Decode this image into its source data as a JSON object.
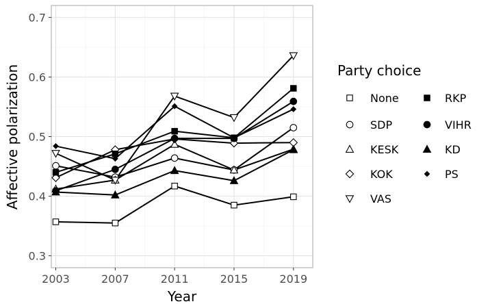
{
  "chart_data": {
    "type": "line",
    "xlabel": "Year",
    "ylabel": "Affective polarization",
    "x": [
      2003,
      2007,
      2011,
      2015,
      2019
    ],
    "xticks": [
      "2003",
      "2007",
      "2011",
      "2015",
      "2019"
    ],
    "yticks": [
      "0.3",
      "0.4",
      "0.5",
      "0.6",
      "0.7"
    ],
    "xlim": [
      2002.7,
      2020.3
    ],
    "ylim": [
      0.28,
      0.72
    ],
    "grid": true,
    "legend": {
      "title": "Party choice",
      "placement": "right",
      "columns": 2
    },
    "series": [
      {
        "name": "None",
        "marker": "square-open",
        "values": [
          0.357,
          0.355,
          0.417,
          0.385,
          0.399
        ]
      },
      {
        "name": "SDP",
        "marker": "circle-open",
        "values": [
          0.451,
          0.432,
          0.464,
          0.444,
          0.515
        ]
      },
      {
        "name": "KESK",
        "marker": "triangle-open",
        "values": [
          0.412,
          0.427,
          0.487,
          0.444,
          0.479
        ]
      },
      {
        "name": "KOK",
        "marker": "diamond-open",
        "values": [
          0.431,
          0.478,
          0.496,
          0.489,
          0.49
        ]
      },
      {
        "name": "VAS",
        "marker": "triangle-down-open",
        "values": [
          0.472,
          0.427,
          0.568,
          0.532,
          0.636
        ]
      },
      {
        "name": "RKP",
        "marker": "square-filled",
        "values": [
          0.44,
          0.471,
          0.509,
          0.498,
          0.581
        ]
      },
      {
        "name": "VIHR",
        "marker": "circle-filled",
        "values": [
          0.409,
          0.445,
          0.497,
          0.497,
          0.559
        ]
      },
      {
        "name": "KD",
        "marker": "triangle-filled",
        "values": [
          0.407,
          0.402,
          0.443,
          0.426,
          0.478
        ]
      },
      {
        "name": "PS",
        "marker": "diamond-filled",
        "values": [
          0.484,
          0.463,
          0.551,
          0.498,
          0.546
        ]
      }
    ],
    "colors": {
      "line": "#000000",
      "grid": "#e3e3e3",
      "panel_border": "#b3b3b3"
    }
  }
}
